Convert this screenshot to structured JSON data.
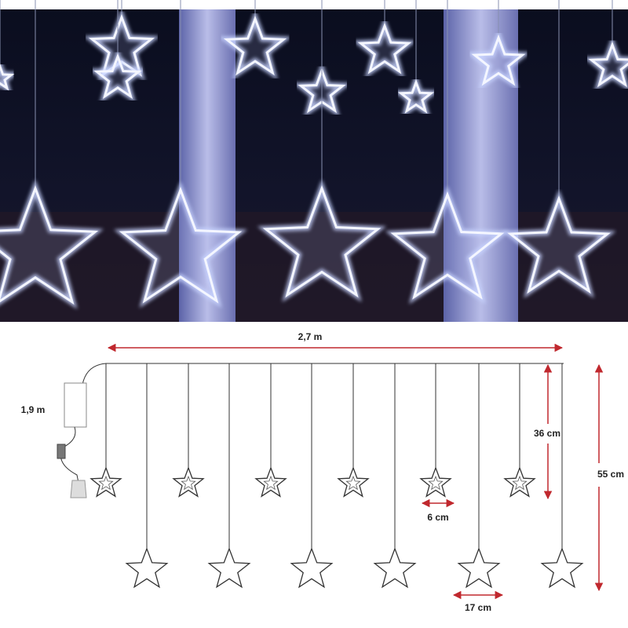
{
  "diagram": {
    "width_label": "2,7 m",
    "lead_label": "1,9 m",
    "short_drop_label": "36 cm",
    "long_drop_label": "55 cm",
    "small_star_label": "6 cm",
    "large_star_label": "17 cm"
  }
}
